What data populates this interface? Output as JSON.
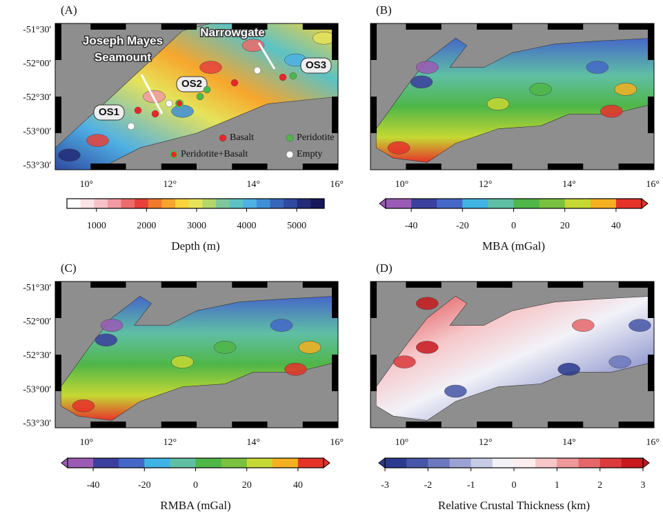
{
  "panels": [
    {
      "label": "(A)",
      "xlim": [
        9.25,
        16.03
      ],
      "ylim": [
        -53.56,
        -51.4
      ],
      "yticks": [
        {
          "value": -51.5,
          "label": "-51°30'"
        },
        {
          "value": -52,
          "label": "-52°00'"
        },
        {
          "value": -52.5,
          "label": "-52°30'"
        },
        {
          "value": -53,
          "label": "-53°00'"
        },
        {
          "value": -53.5,
          "label": "-53°30'"
        }
      ],
      "xticks": [
        {
          "value": 10,
          "label": "10°"
        },
        {
          "value": 12,
          "label": "12°"
        },
        {
          "value": 14,
          "label": "14°"
        },
        {
          "value": 16,
          "label": "16°"
        }
      ],
      "colorbar": {
        "title": "Depth (m)",
        "lim": [
          410,
          5550
        ],
        "ticks": [
          1000,
          2000,
          3000,
          4000,
          5000
        ],
        "arrows": false,
        "colors": [
          "#ffffff",
          "#fbe3e6",
          "#f6c2c8",
          "#f29aa3",
          "#ec6b6b",
          "#e8413a",
          "#f07a2a",
          "#f7a62c",
          "#fbd23a",
          "#e6e35a",
          "#b5d66a",
          "#7fc79a",
          "#5cc2c4",
          "#4fb0e4",
          "#3f8fd8",
          "#3866bd",
          "#2f4aa0",
          "#232c78",
          "#16165a"
        ]
      },
      "annotations": [
        {
          "text": "Joseph Mayes"
        },
        {
          "text": "Seamount"
        },
        {
          "text": "Narrowgate"
        },
        {
          "text": "OS1"
        },
        {
          "text": "OS2"
        },
        {
          "text": "OS3"
        }
      ],
      "legend": [
        {
          "label": "Basalt",
          "color": "#e8262b"
        },
        {
          "label": "Peridotite",
          "color": "#4cb848"
        },
        {
          "label": "Peridotite+Basalt",
          "color": "#e8262b"
        },
        {
          "label": "Empty",
          "color": "#ffffff"
        }
      ]
    },
    {
      "label": "(B)",
      "xlim": [
        9.25,
        16.03
      ],
      "ylim": [
        -53.56,
        -51.4
      ],
      "xticks": [
        {
          "value": 10,
          "label": "10°"
        },
        {
          "value": 12,
          "label": "12°"
        },
        {
          "value": 14,
          "label": "14°"
        },
        {
          "value": 16,
          "label": "16°"
        }
      ],
      "colorbar": {
        "title": "MBA (mGal)",
        "lim": [
          -50,
          50
        ],
        "ticks": [
          -40,
          -20,
          0,
          20,
          40
        ],
        "arrows": true,
        "colors": [
          "#9b5bb5",
          "#3b3f9e",
          "#4568c8",
          "#3fb3e3",
          "#5fbfa4",
          "#4fb648",
          "#79c13e",
          "#c6d833",
          "#f5b021",
          "#e6332a"
        ]
      }
    },
    {
      "label": "(C)",
      "xlim": [
        9.25,
        16.03
      ],
      "ylim": [
        -53.56,
        -51.4
      ],
      "yticks": [
        {
          "value": -51.5,
          "label": "-51°30'"
        },
        {
          "value": -52,
          "label": "-52°00'"
        },
        {
          "value": -52.5,
          "label": "-52°30'"
        },
        {
          "value": -53,
          "label": "-53°00'"
        },
        {
          "value": -53.5,
          "label": "-53°30'"
        }
      ],
      "xticks": [
        {
          "value": 10,
          "label": "10°"
        },
        {
          "value": 12,
          "label": "12°"
        },
        {
          "value": 14,
          "label": "14°"
        },
        {
          "value": 16,
          "label": "16°"
        }
      ],
      "colorbar": {
        "title": "RMBA (mGal)",
        "lim": [
          -50,
          50
        ],
        "ticks": [
          -40,
          -20,
          0,
          20,
          40
        ],
        "arrows": true,
        "colors": [
          "#9b5bb5",
          "#3b3f9e",
          "#4568c8",
          "#3fb3e3",
          "#5fbfa4",
          "#4fb648",
          "#79c13e",
          "#c6d833",
          "#f5b021",
          "#e6332a"
        ]
      }
    },
    {
      "label": "(D)",
      "xlim": [
        9.25,
        16.03
      ],
      "ylim": [
        -53.56,
        -51.4
      ],
      "xticks": [
        {
          "value": 10,
          "label": "10°"
        },
        {
          "value": 12,
          "label": "12°"
        },
        {
          "value": 14,
          "label": "14°"
        },
        {
          "value": 16,
          "label": "16°"
        }
      ],
      "colorbar": {
        "title": "Relative Crustal Thickness (km)",
        "lim": [
          -3,
          3
        ],
        "ticks": [
          -3,
          -2,
          -1,
          0,
          1,
          2,
          3
        ],
        "arrows": true,
        "colors": [
          "#2b3a8f",
          "#4656a8",
          "#6d79bd",
          "#9ba2d3",
          "#c8cbe6",
          "#f2f2f8",
          "#fbeeee",
          "#f6c6c8",
          "#ef9799",
          "#e6676a",
          "#dc3a3d",
          "#c8191e"
        ]
      }
    }
  ]
}
